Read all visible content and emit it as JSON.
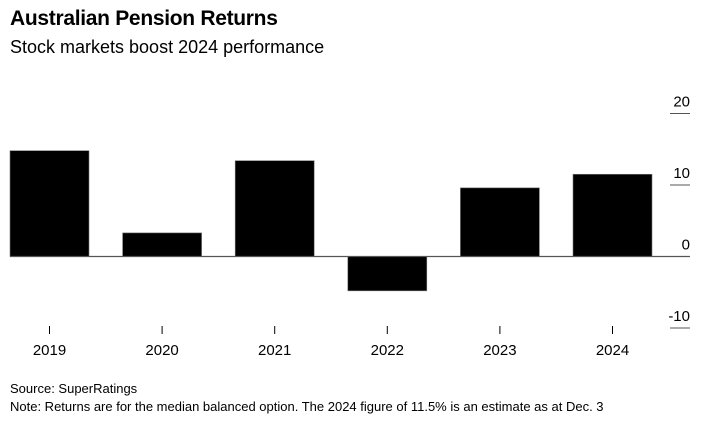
{
  "chart_data": {
    "type": "bar",
    "title": "Australian Pension Returns",
    "subtitle": "Stock markets boost 2024 performance",
    "categories": [
      "2019",
      "2020",
      "2021",
      "2022",
      "2023",
      "2024"
    ],
    "values": [
      14.8,
      3.3,
      13.4,
      -4.8,
      9.6,
      11.5
    ],
    "xlabel": "",
    "ylabel": "",
    "ylim": [
      -10,
      20
    ],
    "yticks": [
      20,
      10,
      0,
      -10
    ],
    "yaxis_position": "right",
    "bar_color": "#000000",
    "source": "Source: SuperRatings",
    "note": "Note: Returns are for the median balanced option. The 2024 figure of 11.5% is an estimate as at Dec. 3"
  }
}
